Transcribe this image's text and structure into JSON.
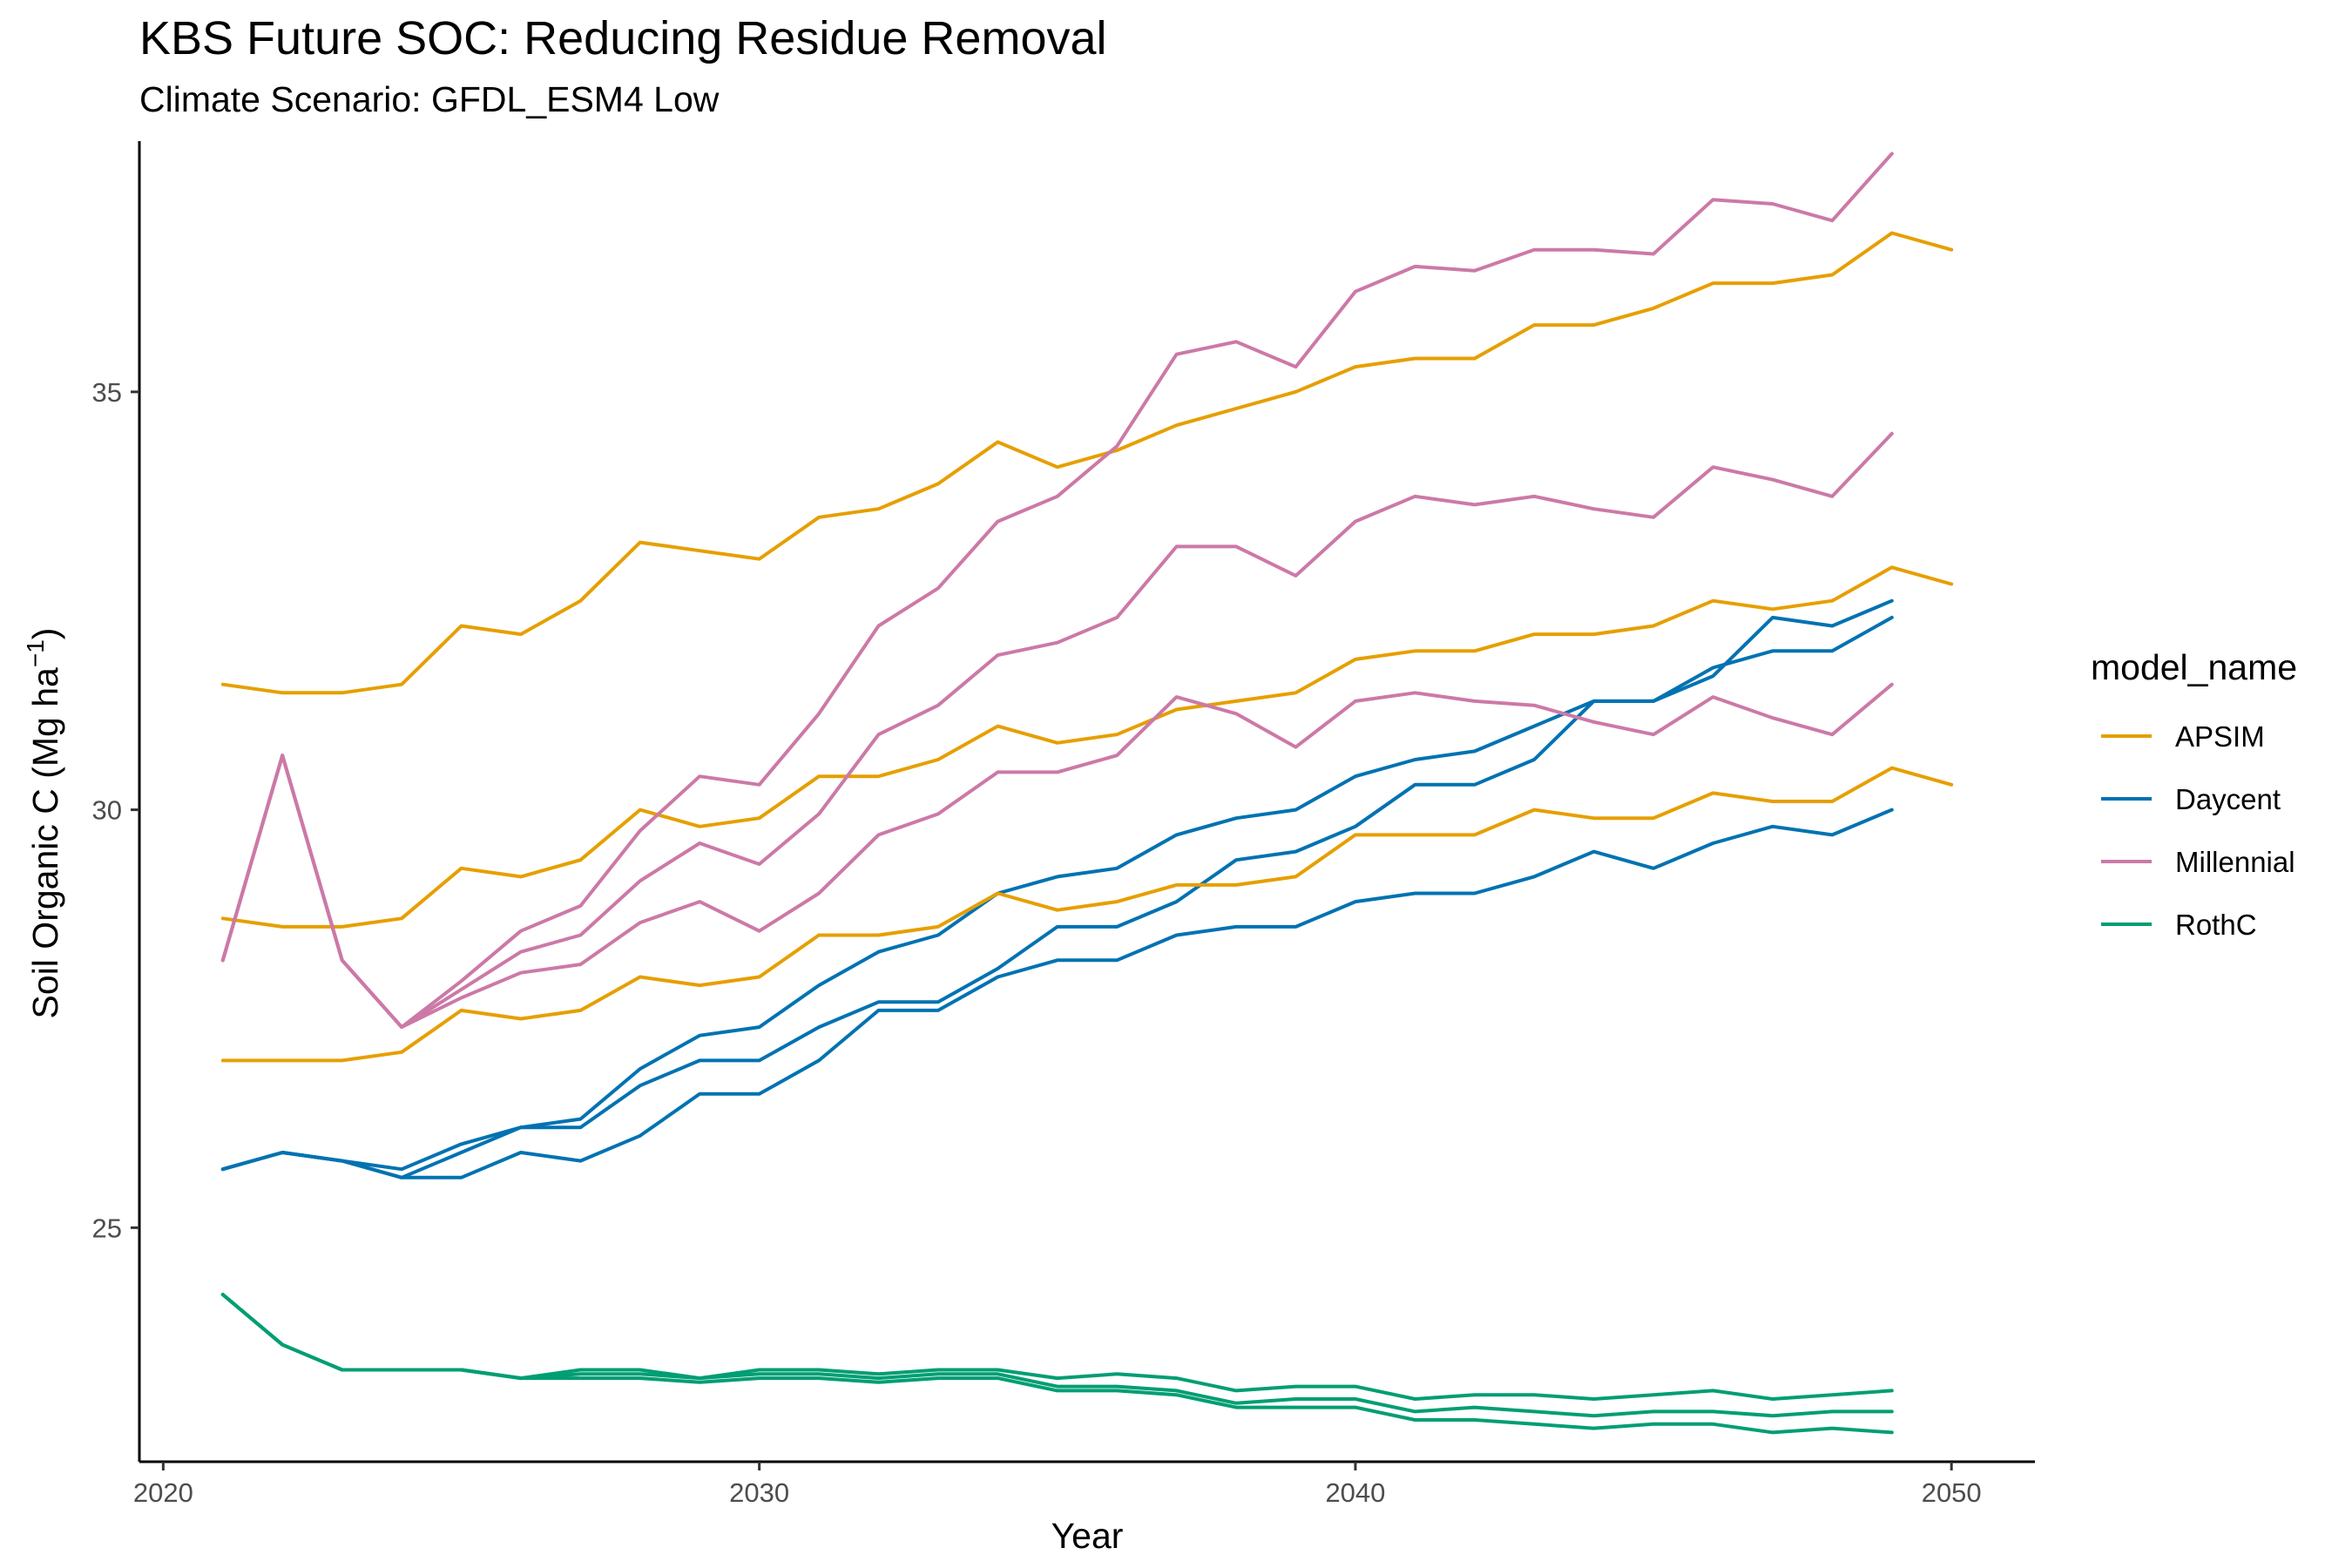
{
  "chart_data": {
    "type": "line",
    "title": "KBS  Future SOC: Reducing Residue Removal",
    "subtitle": "Climate Scenario: GFDL_ESM4 Low",
    "xlabel": "Year",
    "ylabel": "Soil Organic C (Mg ha",
    "ylabel_sup": "−1",
    "ylabel_close": ")",
    "xlim": [
      2019.6,
      2051.4
    ],
    "ylim": [
      22.2,
      38.0
    ],
    "xticks": [
      2020,
      2030,
      2040,
      2050
    ],
    "yticks": [
      25,
      30,
      35
    ],
    "grid": false,
    "legend": {
      "title": "model_name",
      "position": "right"
    },
    "models": [
      {
        "name": "APSIM",
        "color": "#E69F00"
      },
      {
        "name": "Daycent",
        "color": "#0072B2"
      },
      {
        "name": "Millennial",
        "color": "#CC79A7"
      },
      {
        "name": "RothC",
        "color": "#009E73"
      }
    ],
    "series": [
      {
        "model": "APSIM",
        "x_start": 2021,
        "values": [
          31.5,
          31.4,
          31.4,
          31.5,
          32.2,
          32.1,
          32.5,
          33.2,
          33.1,
          33.0,
          33.5,
          33.6,
          33.9,
          34.4,
          34.1,
          34.3,
          34.6,
          34.8,
          35.0,
          35.3,
          35.4,
          35.4,
          35.8,
          35.8,
          36.0,
          36.3,
          36.3,
          36.4,
          36.9,
          36.7
        ]
      },
      {
        "model": "APSIM",
        "x_start": 2021,
        "values": [
          28.7,
          28.6,
          28.6,
          28.7,
          29.3,
          29.2,
          29.4,
          30.0,
          29.8,
          29.9,
          30.4,
          30.4,
          30.6,
          31.0,
          30.8,
          30.9,
          31.2,
          31.3,
          31.4,
          31.8,
          31.9,
          31.9,
          32.1,
          32.1,
          32.2,
          32.5,
          32.4,
          32.5,
          32.9,
          32.7
        ]
      },
      {
        "model": "APSIM",
        "x_start": 2021,
        "values": [
          27.0,
          27.0,
          27.0,
          27.1,
          27.6,
          27.5,
          27.6,
          28.0,
          27.9,
          28.0,
          28.5,
          28.5,
          28.6,
          29.0,
          28.8,
          28.9,
          29.1,
          29.1,
          29.2,
          29.7,
          29.7,
          29.7,
          30.0,
          29.9,
          29.9,
          30.2,
          30.1,
          30.1,
          30.5,
          30.3
        ]
      },
      {
        "model": "Daycent",
        "x_start": 2021,
        "values": [
          25.7,
          25.9,
          25.8,
          25.7,
          26.0,
          26.2,
          26.3,
          26.9,
          27.3,
          27.4,
          27.9,
          28.3,
          28.5,
          29.0,
          29.2,
          29.3,
          29.7,
          29.9,
          30.0,
          30.4,
          30.6,
          30.7,
          31.0,
          31.3,
          31.3,
          31.6,
          32.3,
          32.2,
          32.5
        ]
      },
      {
        "model": "Daycent",
        "x_start": 2021,
        "values": [
          25.7,
          25.9,
          25.8,
          25.6,
          25.9,
          26.2,
          26.2,
          26.7,
          27.0,
          27.0,
          27.4,
          27.7,
          27.7,
          28.1,
          28.6,
          28.6,
          28.9,
          29.4,
          29.5,
          29.8,
          30.3,
          30.3,
          30.6,
          31.3,
          31.3,
          31.7,
          31.9,
          31.9,
          32.3
        ]
      },
      {
        "model": "Daycent",
        "x_start": 2021,
        "values": [
          25.7,
          25.9,
          25.8,
          25.6,
          25.6,
          25.9,
          25.8,
          26.1,
          26.6,
          26.6,
          27.0,
          27.6,
          27.6,
          28.0,
          28.2,
          28.2,
          28.5,
          28.6,
          28.6,
          28.9,
          29.0,
          29.0,
          29.2,
          29.5,
          29.3,
          29.6,
          29.8,
          29.7,
          30.0
        ]
      },
      {
        "model": "Millennial",
        "x_start": 2021,
        "values": [
          28.2,
          30.65,
          28.2,
          27.4,
          27.95,
          28.55,
          28.85,
          29.75,
          30.4,
          30.3,
          31.15,
          32.2,
          32.65,
          33.45,
          33.75,
          34.35,
          35.45,
          35.6,
          35.3,
          36.2,
          36.5,
          36.45,
          36.7,
          36.7,
          36.65,
          37.3,
          37.25,
          37.05,
          37.85
        ]
      },
      {
        "model": "Millennial",
        "x_start": 2021,
        "values": [
          28.2,
          30.65,
          28.2,
          27.4,
          27.85,
          28.3,
          28.5,
          29.15,
          29.6,
          29.35,
          29.95,
          30.9,
          31.25,
          31.85,
          32.0,
          32.3,
          33.15,
          33.15,
          32.8,
          33.45,
          33.75,
          33.65,
          33.75,
          33.6,
          33.5,
          34.1,
          33.95,
          33.75,
          34.5
        ]
      },
      {
        "model": "Millennial",
        "x_start": 2021,
        "values": [
          28.2,
          30.65,
          28.2,
          27.4,
          27.75,
          28.05,
          28.15,
          28.65,
          28.9,
          28.55,
          29.0,
          29.7,
          29.95,
          30.45,
          30.45,
          30.65,
          31.35,
          31.15,
          30.75,
          31.3,
          31.4,
          31.3,
          31.25,
          31.05,
          30.9,
          31.35,
          31.1,
          30.9,
          31.5
        ]
      },
      {
        "model": "RothC",
        "x_start": 2021,
        "values": [
          24.2,
          23.6,
          23.3,
          23.3,
          23.3,
          23.2,
          23.3,
          23.3,
          23.2,
          23.3,
          23.3,
          23.25,
          23.3,
          23.3,
          23.2,
          23.25,
          23.2,
          23.05,
          23.1,
          23.1,
          22.95,
          23.0,
          23.0,
          22.95,
          23.0,
          23.05,
          22.95,
          23.0,
          23.05
        ]
      },
      {
        "model": "RothC",
        "x_start": 2021,
        "values": [
          24.2,
          23.6,
          23.3,
          23.3,
          23.3,
          23.2,
          23.25,
          23.25,
          23.2,
          23.25,
          23.25,
          23.2,
          23.25,
          23.25,
          23.1,
          23.1,
          23.05,
          22.9,
          22.95,
          22.95,
          22.8,
          22.85,
          22.8,
          22.75,
          22.8,
          22.8,
          22.75,
          22.8,
          22.8
        ]
      },
      {
        "model": "RothC",
        "x_start": 2021,
        "values": [
          24.2,
          23.6,
          23.3,
          23.3,
          23.3,
          23.2,
          23.2,
          23.2,
          23.15,
          23.2,
          23.2,
          23.15,
          23.2,
          23.2,
          23.05,
          23.05,
          23.0,
          22.85,
          22.85,
          22.85,
          22.7,
          22.7,
          22.65,
          22.6,
          22.65,
          22.65,
          22.55,
          22.6,
          22.55
        ]
      }
    ]
  }
}
